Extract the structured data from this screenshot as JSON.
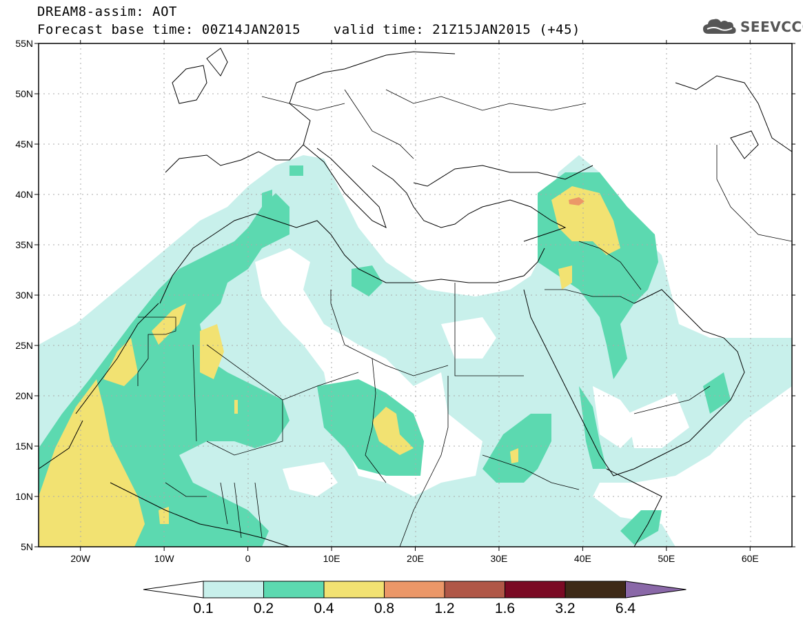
{
  "header": {
    "line1": "DREAM8-assim: AOT",
    "line2": "Forecast base time: 00Z14JAN2015    valid time: 21Z15JAN2015 (+45)"
  },
  "logo": {
    "text": "SEEVCCC",
    "icon": "cloud-icon"
  },
  "map": {
    "lon_range": [
      -25,
      65
    ],
    "lat_range": [
      5,
      55
    ],
    "lat_labels": [
      "55N",
      "50N",
      "45N",
      "40N",
      "35N",
      "30N",
      "25N",
      "20N",
      "15N",
      "10N",
      "5N"
    ],
    "lat_values": [
      55,
      50,
      45,
      40,
      35,
      30,
      25,
      20,
      15,
      10,
      5
    ],
    "lon_labels": [
      "20W",
      "10W",
      "0",
      "10E",
      "20E",
      "30E",
      "40E",
      "50E",
      "60E"
    ],
    "lon_values": [
      -20,
      -10,
      0,
      10,
      20,
      30,
      40,
      50,
      60
    ],
    "grid": true
  },
  "colorbar": {
    "labels": [
      "0.1",
      "0.2",
      "0.4",
      "0.8",
      "1.2",
      "1.6",
      "3.2",
      "6.4"
    ],
    "colors": [
      "#c8f0eb",
      "#5cd9b0",
      "#f2e272",
      "#eb9768",
      "#b05747",
      "#7a0a24",
      "#3e2a17",
      "#8a68a8"
    ],
    "below_color": "#ffffff"
  }
}
